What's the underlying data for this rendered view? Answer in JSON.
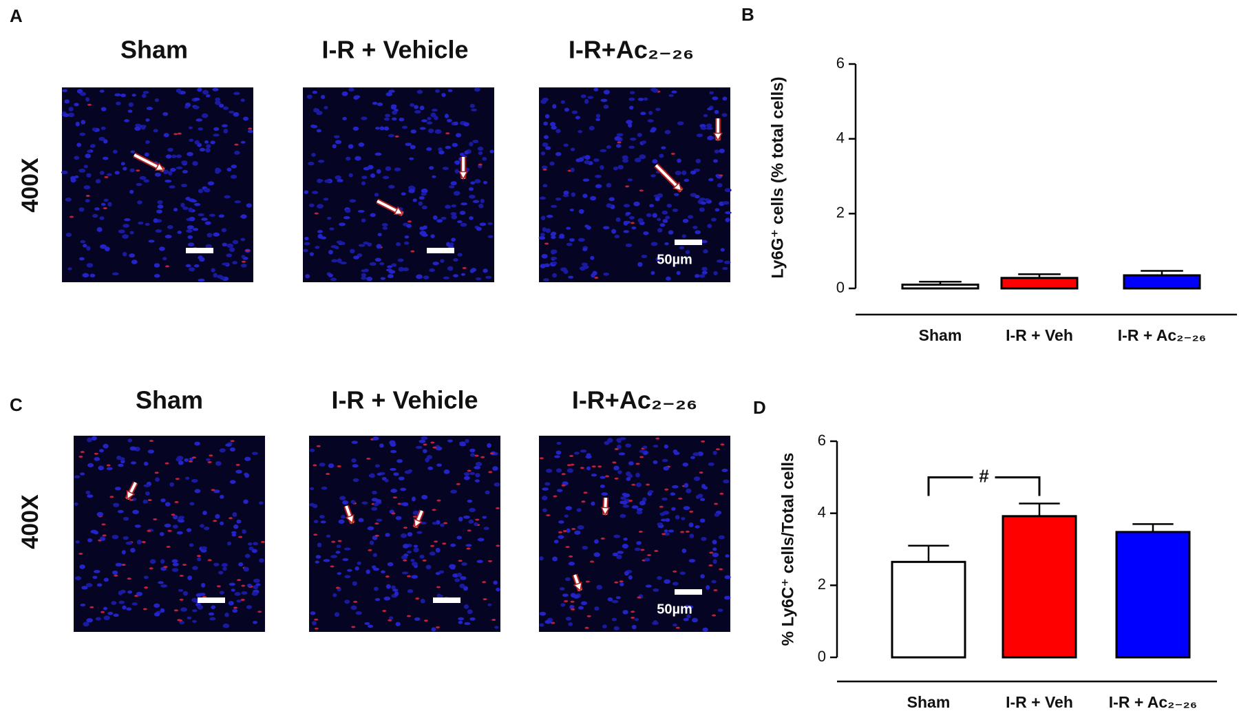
{
  "figure_panels": [
    {
      "label": "A",
      "magnification": "400X",
      "titles": [
        "Sham",
        "I-R + Vehicle",
        "I-R+Ac₂₋₂₆"
      ],
      "scale_bar": "50µm"
    },
    {
      "label": "C",
      "magnification": "400X",
      "titles": [
        "Sham",
        "I-R + Vehicle",
        "I-R+Ac₂₋₂₆"
      ],
      "scale_bar": "50µm"
    }
  ],
  "chart_data": [
    {
      "type": "bar",
      "label": "B",
      "ylabel": "Ly6G⁺ cells (% total cells)",
      "categories": [
        "Sham",
        "I-R + Veh",
        "I-R + Ac₂₋₂₆"
      ],
      "values": [
        0.1,
        0.28,
        0.35
      ],
      "errors": [
        0.08,
        0.1,
        0.12
      ],
      "colors": [
        "#ffffff",
        "#ff0000",
        "#0000ff"
      ],
      "ylim": [
        0,
        6
      ],
      "yticks": [
        0,
        2,
        4,
        6
      ]
    },
    {
      "type": "bar",
      "label": "D",
      "ylabel": "% Ly6C⁺ cells/Total cells",
      "categories": [
        "Sham",
        "I-R + Veh",
        "I-R + Ac₂₋₂₆"
      ],
      "values": [
        2.65,
        3.92,
        3.48
      ],
      "errors": [
        0.45,
        0.35,
        0.22
      ],
      "colors": [
        "#ffffff",
        "#ff0000",
        "#0000ff"
      ],
      "ylim": [
        0,
        6
      ],
      "yticks": [
        0,
        2,
        4,
        6
      ],
      "annotations": [
        {
          "text": "#",
          "between": [
            "Sham",
            "I-R + Veh"
          ]
        }
      ]
    }
  ]
}
